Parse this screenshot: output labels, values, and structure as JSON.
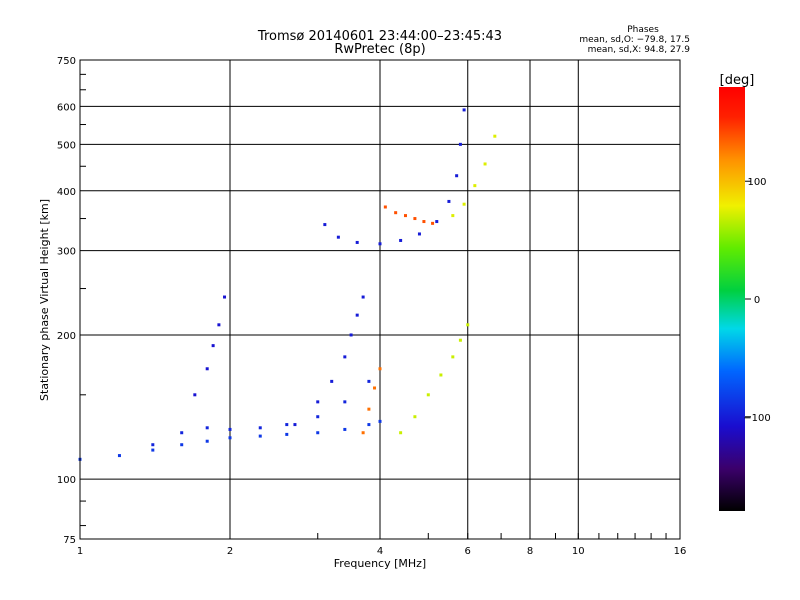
{
  "chart_data": {
    "type": "scatter",
    "title": "Tromsø 20140601 23:44:00–23:45:43",
    "subtitle": "RwPretec (8p)",
    "xlabel": "Frequency [MHz]",
    "ylabel": "Stationary phase Virtual Height [km]",
    "x_scale": "log",
    "y_scale": "log",
    "xlim": [
      1,
      16
    ],
    "ylim": [
      75,
      750
    ],
    "x_ticks": [
      1,
      2,
      4,
      6,
      8,
      10,
      16
    ],
    "x_tick_labels": [
      "1",
      "2",
      "4",
      "6",
      "8",
      "10",
      "16"
    ],
    "y_ticks": [
      75,
      100,
      200,
      300,
      400,
      500,
      600,
      750
    ],
    "y_tick_labels": [
      "75",
      "100",
      "200",
      "300",
      "400",
      "500",
      "600",
      "750"
    ],
    "grid": true,
    "phase_box": {
      "title": "Phases",
      "line1": "mean, sd,O: −79.8, 17.5",
      "line2": "mean, sd,X:  94.8, 27.9"
    },
    "colorbar": {
      "label": "[deg]",
      "range": [
        -180,
        180
      ],
      "ticks": [
        100,
        0,
        -100
      ],
      "tick_labels": [
        "100",
        "0",
        "−100"
      ]
    },
    "traces": [
      {
        "x": [
          1.0,
          1.2,
          1.4,
          1.6,
          1.8,
          2.0,
          2.3,
          2.6,
          3.0,
          3.4,
          3.8,
          4.0
        ],
        "y": [
          110,
          112,
          115,
          118,
          120,
          122,
          123,
          124,
          125,
          127,
          130,
          132
        ],
        "phase": -85
      },
      {
        "x": [
          1.4,
          1.6,
          1.8,
          2.0,
          2.3,
          2.6,
          3.0,
          3.4,
          3.8
        ],
        "y": [
          118,
          125,
          128,
          127,
          128,
          130,
          135,
          145,
          160
        ],
        "phase": -95
      },
      {
        "x": [
          2.7,
          3.0,
          3.2,
          3.4,
          3.5,
          3.6,
          3.7
        ],
        "y": [
          130,
          145,
          160,
          180,
          200,
          220,
          240
        ],
        "phase": -100
      },
      {
        "x": [
          1.7,
          1.8,
          1.85,
          1.9,
          1.95
        ],
        "y": [
          150,
          170,
          190,
          210,
          240
        ],
        "phase": -105
      },
      {
        "x": [
          3.1,
          3.3,
          3.6,
          4.0,
          4.4,
          4.8,
          5.2,
          5.5,
          5.7,
          5.8,
          5.9
        ],
        "y": [
          340,
          320,
          312,
          310,
          315,
          325,
          345,
          380,
          430,
          500,
          590
        ],
        "phase": -100
      },
      {
        "x": [
          3.7,
          3.8,
          3.9,
          4.0
        ],
        "y": [
          125,
          140,
          155,
          170
        ],
        "phase": 130
      },
      {
        "x": [
          4.1,
          4.3,
          4.5,
          4.7,
          4.9,
          5.1
        ],
        "y": [
          370,
          360,
          355,
          350,
          345,
          342
        ],
        "phase": 140
      },
      {
        "x": [
          5.6,
          5.9,
          6.2,
          6.5,
          6.8
        ],
        "y": [
          355,
          375,
          410,
          455,
          520
        ],
        "phase": 75
      },
      {
        "x": [
          4.4,
          4.7,
          5.0,
          5.3,
          5.6,
          5.8,
          6.0
        ],
        "y": [
          125,
          135,
          150,
          165,
          180,
          195,
          210
        ],
        "phase": 70
      }
    ]
  }
}
